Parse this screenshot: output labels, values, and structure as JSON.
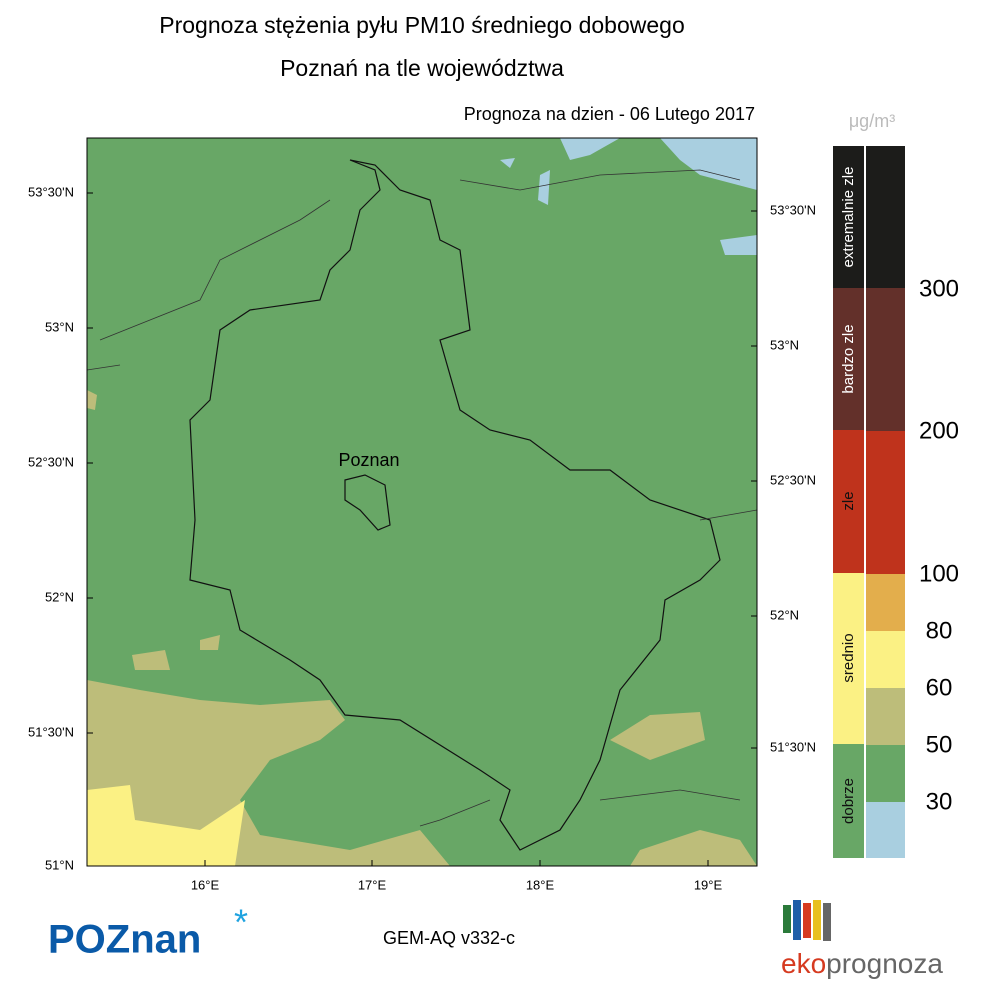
{
  "header": {
    "title": "Prognoza stężenia pyłu PM10 średniego dobowego",
    "subtitle": "Poznań na tle województwa",
    "date": "Prognoza na dzien -  06 Lutego 2017"
  },
  "map": {
    "city": "Poznan",
    "lat_left": [
      "53°30'N",
      "53°N",
      "52°30'N",
      "52°N",
      "51°30'N",
      "51°N"
    ],
    "lat_right": [
      "53°30'N",
      "53°N",
      "52°30'N",
      "52°N",
      "51°30'N"
    ],
    "lon": [
      "16°E",
      "17°E",
      "18°E",
      "19°E"
    ]
  },
  "legend": {
    "unit": "μg/m³",
    "categories": [
      "extremalnie zle",
      "bardzo zle",
      "zle",
      "srednio",
      "dobrze"
    ],
    "thresholds": [
      "300",
      "200",
      "100",
      "80",
      "60",
      "50",
      "30"
    ]
  },
  "footer": {
    "logo": "POZnan",
    "model": "GEM-AQ v332-c",
    "brand_prefix": "eko",
    "brand_suffix": "prognoza"
  }
}
